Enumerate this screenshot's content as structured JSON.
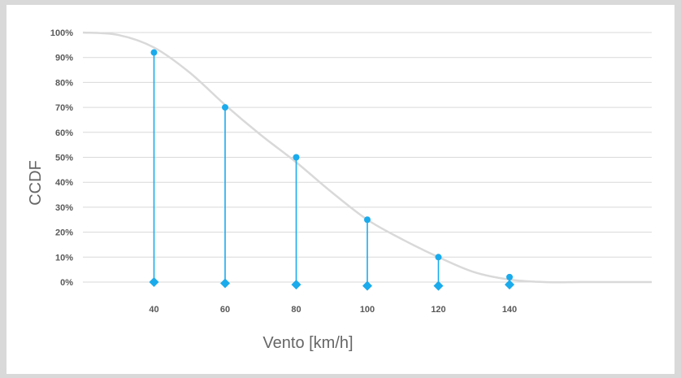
{
  "chart_data": {
    "type": "line",
    "xlabel": "Vento [km/h]",
    "ylabel": "CCDF",
    "x_ticks": [
      "40",
      "60",
      "80",
      "100",
      "120",
      "140"
    ],
    "y_ticks": [
      "0%",
      "10%",
      "20%",
      "30%",
      "40%",
      "50%",
      "60%",
      "70%",
      "80%",
      "90%",
      "100%"
    ],
    "xlim": [
      20,
      180
    ],
    "ylim": [
      0,
      100
    ],
    "grid": true,
    "series": [
      {
        "style": "smooth-curve",
        "color": "#d9d9d9",
        "x": [
          20,
          30,
          40,
          50,
          60,
          70,
          80,
          90,
          100,
          110,
          120,
          130,
          140,
          150,
          160,
          170,
          180
        ],
        "y": [
          100,
          99,
          94,
          84,
          71,
          59,
          48,
          36,
          25,
          17,
          10,
          4,
          1,
          0,
          0,
          0,
          0
        ]
      },
      {
        "style": "stem",
        "color": "#1aabec",
        "x": [
          40,
          60,
          80,
          100,
          120,
          140
        ],
        "y": [
          92,
          70,
          50,
          25,
          10,
          2
        ],
        "base": [
          0,
          -0.5,
          -1,
          -1.5,
          -1.5,
          -1
        ]
      }
    ]
  }
}
